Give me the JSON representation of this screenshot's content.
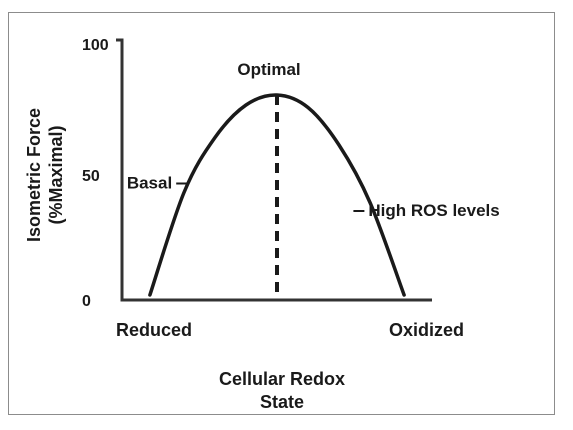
{
  "chart_data": {
    "type": "line",
    "title": "",
    "xlabel": [
      "Cellular Redox",
      "State"
    ],
    "ylabel": [
      "Isometric Force",
      "(%Maximal)"
    ],
    "x_categories": [
      "Reduced",
      "Oxidized"
    ],
    "y_ticks": [
      "100",
      "50",
      "0"
    ],
    "y_tick_values": [
      100,
      50,
      0
    ],
    "ylim": [
      0,
      100
    ],
    "xlim": [
      0,
      1
    ],
    "grid": false,
    "series": [
      {
        "x": [
          0.09,
          0.2,
          0.3,
          0.4,
          0.5,
          0.6,
          0.7,
          0.8,
          0.91
        ],
        "y": [
          2,
          43,
          65,
          78,
          82,
          77,
          62,
          39,
          2
        ]
      }
    ],
    "peak_marker": {
      "x": 0.5,
      "style": "dashed"
    },
    "annotations": [
      {
        "text": "Optimal",
        "x": 0.5,
        "y": 82
      },
      {
        "text": "Basal",
        "x": 0.22,
        "y": 47
      },
      {
        "text": "High ROS levels",
        "x": 0.74,
        "y": 36
      }
    ],
    "colors": {
      "line": "#1a1a1a",
      "axis": "#333333",
      "frame": "#8c8c8c"
    }
  }
}
